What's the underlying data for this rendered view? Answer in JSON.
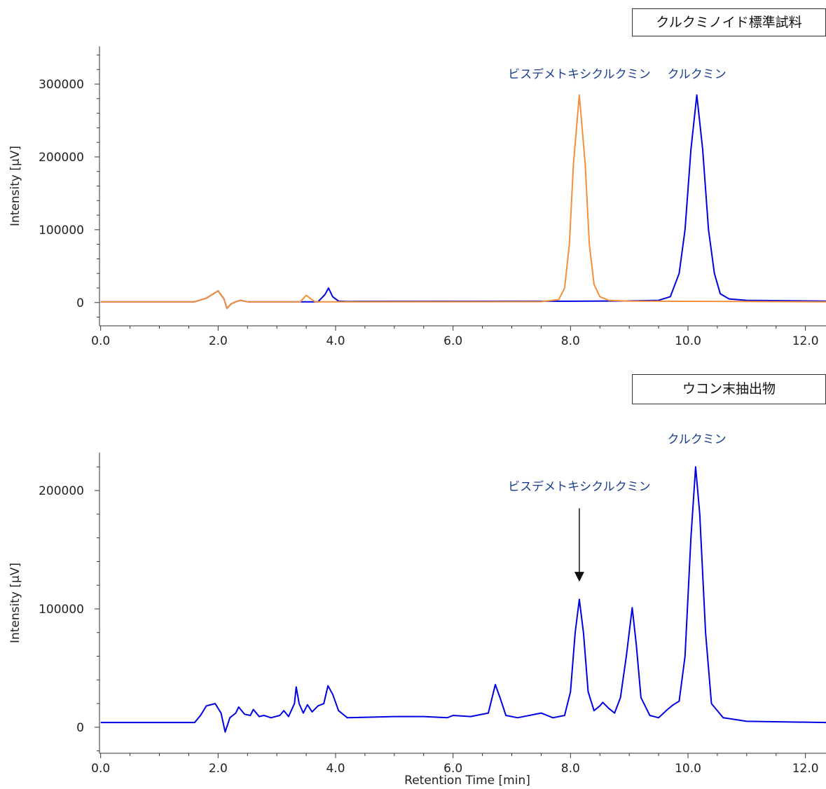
{
  "chart_data": [
    {
      "type": "line",
      "title": "クルクミノイド標準試料",
      "ylabel": "Intensity [µV]",
      "xlabel": "",
      "xlim": [
        -0.02,
        12.35
      ],
      "ylim": [
        -32000,
        352000
      ],
      "x_ticks": [
        0,
        2,
        4,
        6,
        8,
        10,
        12
      ],
      "x_tick_labels": [
        "0.0",
        "2.0",
        "4.0",
        "6.0",
        "8.0",
        "10.0",
        "12.0"
      ],
      "y_ticks": [
        0,
        100000,
        200000,
        300000
      ],
      "y_tick_labels": [
        "0",
        "100000",
        "200000",
        "300000"
      ],
      "series": [
        {
          "color": "#0000e0",
          "points": [
            [
              0,
              1000
            ],
            [
              1.6,
              1000
            ],
            [
              1.8,
              6000
            ],
            [
              2.0,
              16000
            ],
            [
              2.1,
              5000
            ],
            [
              2.15,
              -8000
            ],
            [
              2.22,
              -2000
            ],
            [
              2.3,
              1000
            ],
            [
              2.38,
              3000
            ],
            [
              2.5,
              1000
            ],
            [
              3.7,
              1000
            ],
            [
              3.82,
              11000
            ],
            [
              3.88,
              20000
            ],
            [
              3.95,
              8000
            ],
            [
              4.05,
              2000
            ],
            [
              4.2,
              1500
            ],
            [
              7.0,
              1800
            ],
            [
              8.0,
              1800
            ],
            [
              9.0,
              2200
            ],
            [
              9.5,
              3000
            ],
            [
              9.7,
              8000
            ],
            [
              9.85,
              40000
            ],
            [
              9.95,
              100000
            ],
            [
              10.05,
              210000
            ],
            [
              10.15,
              285000
            ],
            [
              10.25,
              210000
            ],
            [
              10.35,
              100000
            ],
            [
              10.45,
              40000
            ],
            [
              10.55,
              12000
            ],
            [
              10.7,
              5000
            ],
            [
              11.0,
              3000
            ],
            [
              12.35,
              2000
            ]
          ]
        },
        {
          "color": "#f2913d",
          "points": [
            [
              0,
              1000
            ],
            [
              1.6,
              1000
            ],
            [
              1.8,
              6000
            ],
            [
              2.0,
              16000
            ],
            [
              2.1,
              5000
            ],
            [
              2.15,
              -8000
            ],
            [
              2.22,
              -2000
            ],
            [
              2.3,
              1000
            ],
            [
              2.38,
              3000
            ],
            [
              2.5,
              1000
            ],
            [
              3.4,
              1000
            ],
            [
              3.5,
              10000
            ],
            [
              3.58,
              5000
            ],
            [
              3.65,
              1000
            ],
            [
              4.2,
              1000
            ],
            [
              7.5,
              1200
            ],
            [
              7.8,
              4000
            ],
            [
              7.9,
              20000
            ],
            [
              7.98,
              80000
            ],
            [
              8.05,
              190000
            ],
            [
              8.15,
              285000
            ],
            [
              8.25,
              190000
            ],
            [
              8.32,
              80000
            ],
            [
              8.4,
              25000
            ],
            [
              8.5,
              8000
            ],
            [
              8.65,
              3000
            ],
            [
              9.0,
              2000
            ],
            [
              12.35,
              1000
            ]
          ]
        }
      ],
      "annotations": [
        {
          "text": "ビスデメトキシクルクミン",
          "x": 8.15,
          "y": 308000,
          "color": "#1a3d8f"
        },
        {
          "text": "クルクミン",
          "x": 10.15,
          "y": 308000,
          "color": "#1a3d8f"
        }
      ]
    },
    {
      "type": "line",
      "title": "ウコン末抽出物",
      "ylabel": "Intensity [µV]",
      "xlabel": "Retention Time [min]",
      "xlim": [
        -0.02,
        12.35
      ],
      "ylim": [
        -22000,
        232000
      ],
      "x_ticks": [
        0,
        2,
        4,
        6,
        8,
        10,
        12
      ],
      "x_tick_labels": [
        "0.0",
        "2.0",
        "4.0",
        "6.0",
        "8.0",
        "10.0",
        "12.0"
      ],
      "y_ticks": [
        0,
        100000,
        200000
      ],
      "y_tick_labels": [
        "0",
        "100000",
        "200000"
      ],
      "series": [
        {
          "color": "#0000e0",
          "points": [
            [
              0,
              4000
            ],
            [
              1.6,
              4000
            ],
            [
              1.7,
              10000
            ],
            [
              1.8,
              18000
            ],
            [
              1.95,
              20000
            ],
            [
              2.05,
              12000
            ],
            [
              2.12,
              -4000
            ],
            [
              2.2,
              8000
            ],
            [
              2.3,
              12000
            ],
            [
              2.35,
              17000
            ],
            [
              2.45,
              11000
            ],
            [
              2.55,
              10000
            ],
            [
              2.6,
              15000
            ],
            [
              2.7,
              9000
            ],
            [
              2.78,
              10000
            ],
            [
              2.9,
              8000
            ],
            [
              3.05,
              10000
            ],
            [
              3.12,
              14000
            ],
            [
              3.2,
              9000
            ],
            [
              3.3,
              20000
            ],
            [
              3.33,
              34000
            ],
            [
              3.38,
              20000
            ],
            [
              3.45,
              12000
            ],
            [
              3.52,
              19000
            ],
            [
              3.6,
              13000
            ],
            [
              3.7,
              18000
            ],
            [
              3.8,
              20000
            ],
            [
              3.87,
              35000
            ],
            [
              3.95,
              28000
            ],
            [
              4.05,
              14000
            ],
            [
              4.2,
              8000
            ],
            [
              5.0,
              9000
            ],
            [
              5.5,
              9000
            ],
            [
              5.9,
              8000
            ],
            [
              6.0,
              10000
            ],
            [
              6.3,
              9000
            ],
            [
              6.6,
              12000
            ],
            [
              6.72,
              36000
            ],
            [
              6.8,
              25000
            ],
            [
              6.9,
              10000
            ],
            [
              7.1,
              8000
            ],
            [
              7.5,
              12000
            ],
            [
              7.7,
              8000
            ],
            [
              7.9,
              10000
            ],
            [
              8.0,
              30000
            ],
            [
              8.08,
              80000
            ],
            [
              8.15,
              108000
            ],
            [
              8.22,
              80000
            ],
            [
              8.3,
              30000
            ],
            [
              8.4,
              14000
            ],
            [
              8.5,
              18000
            ],
            [
              8.55,
              21000
            ],
            [
              8.65,
              16000
            ],
            [
              8.75,
              12000
            ],
            [
              8.85,
              25000
            ],
            [
              8.95,
              60000
            ],
            [
              9.05,
              101000
            ],
            [
              9.12,
              70000
            ],
            [
              9.2,
              25000
            ],
            [
              9.35,
              10000
            ],
            [
              9.5,
              8000
            ],
            [
              9.65,
              15000
            ],
            [
              9.75,
              19000
            ],
            [
              9.85,
              22000
            ],
            [
              9.95,
              60000
            ],
            [
              10.05,
              160000
            ],
            [
              10.13,
              220000
            ],
            [
              10.2,
              180000
            ],
            [
              10.3,
              80000
            ],
            [
              10.4,
              20000
            ],
            [
              10.6,
              8000
            ],
            [
              11.0,
              5000
            ],
            [
              12.35,
              4000
            ]
          ]
        }
      ],
      "annotations": [
        {
          "text": "ビスデメトキシクルクミン",
          "x": 8.15,
          "y": 200000,
          "color": "#1a3d8f"
        },
        {
          "text": "クルクミン",
          "x": 10.15,
          "y": 240000,
          "color": "#1a3d8f"
        }
      ],
      "arrow": {
        "x": 8.15,
        "y_from": 185000,
        "y_to": 123000
      }
    }
  ]
}
